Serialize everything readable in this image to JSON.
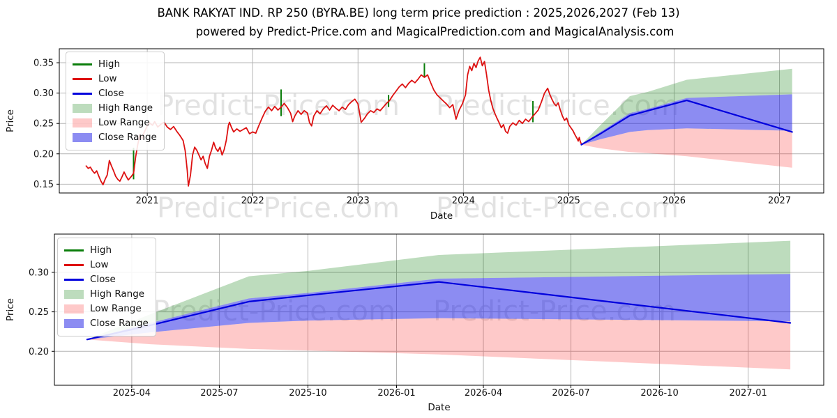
{
  "figure": {
    "title": "BANK RAKYAT IND. RP 250 (BYRA.BE) long term price prediction : 2025,2026,2027 (Feb 13)",
    "subtitle": "powered by Predict-Price.com and MagicalPrediction.com and MagicalAnalysis.com"
  },
  "watermark": {
    "text": "Predict-Price.com"
  },
  "colors": {
    "high": "#0a7d0a",
    "low": "#dd1111",
    "close": "#0000dd",
    "high_range_fill": "rgba(10,125,10,0.27)",
    "low_range_fill": "rgba(250,40,40,0.25)",
    "close_range_fill": "rgba(25,25,230,0.5)",
    "grid": "#b4b4b4",
    "axis": "#000000",
    "tick_label": "#111111",
    "watermark": "#cccccc"
  },
  "legend": {
    "items": [
      {
        "label": "High",
        "swatch": "line",
        "color_key": "high"
      },
      {
        "label": "Low",
        "swatch": "line",
        "color_key": "low"
      },
      {
        "label": "Close",
        "swatch": "line",
        "color_key": "close"
      },
      {
        "label": "High Range",
        "swatch": "band",
        "color_key": "high_range_fill"
      },
      {
        "label": "Low Range",
        "swatch": "band",
        "color_key": "low_range_fill"
      },
      {
        "label": "Close Range",
        "swatch": "band",
        "color_key": "close_range_fill"
      }
    ]
  },
  "prediction": {
    "x": [
      2025.12,
      2025.3,
      2025.58,
      2025.75,
      2026.12,
      2027.12
    ],
    "close": [
      0.215,
      0.233,
      0.263,
      0.271,
      0.288,
      0.236
    ],
    "close_top": [
      0.215,
      0.236,
      0.267,
      0.274,
      0.292,
      0.298
    ],
    "close_bot": [
      0.215,
      0.224,
      0.236,
      0.239,
      0.242,
      0.238
    ],
    "high_top": [
      0.215,
      0.247,
      0.295,
      0.302,
      0.322,
      0.34
    ],
    "low_bot": [
      0.215,
      0.209,
      0.203,
      0.201,
      0.196,
      0.177
    ]
  },
  "history": {
    "low_points": [
      [
        2020.42,
        0.18
      ],
      [
        2020.44,
        0.176
      ],
      [
        2020.46,
        0.178
      ],
      [
        2020.48,
        0.172
      ],
      [
        2020.5,
        0.168
      ],
      [
        2020.52,
        0.172
      ],
      [
        2020.54,
        0.163
      ],
      [
        2020.56,
        0.155
      ],
      [
        2020.58,
        0.149
      ],
      [
        2020.6,
        0.158
      ],
      [
        2020.62,
        0.165
      ],
      [
        2020.64,
        0.189
      ],
      [
        2020.66,
        0.18
      ],
      [
        2020.68,
        0.172
      ],
      [
        2020.7,
        0.163
      ],
      [
        2020.72,
        0.158
      ],
      [
        2020.74,
        0.155
      ],
      [
        2020.76,
        0.162
      ],
      [
        2020.78,
        0.17
      ],
      [
        2020.8,
        0.163
      ],
      [
        2020.82,
        0.157
      ],
      [
        2020.85,
        0.163
      ],
      [
        2020.87,
        0.168
      ],
      [
        2020.89,
        0.195
      ],
      [
        2020.91,
        0.215
      ],
      [
        2020.93,
        0.232
      ],
      [
        2020.95,
        0.224
      ],
      [
        2020.97,
        0.235
      ],
      [
        2021.0,
        0.246
      ],
      [
        2021.02,
        0.251
      ],
      [
        2021.05,
        0.247
      ],
      [
        2021.07,
        0.253
      ],
      [
        2021.1,
        0.244
      ],
      [
        2021.13,
        0.249
      ],
      [
        2021.16,
        0.252
      ],
      [
        2021.19,
        0.244
      ],
      [
        2021.22,
        0.24
      ],
      [
        2021.25,
        0.245
      ],
      [
        2021.28,
        0.237
      ],
      [
        2021.31,
        0.23
      ],
      [
        2021.34,
        0.222
      ],
      [
        2021.36,
        0.205
      ],
      [
        2021.38,
        0.172
      ],
      [
        2021.39,
        0.147
      ],
      [
        2021.41,
        0.165
      ],
      [
        2021.43,
        0.198
      ],
      [
        2021.45,
        0.211
      ],
      [
        2021.47,
        0.206
      ],
      [
        2021.49,
        0.198
      ],
      [
        2021.51,
        0.19
      ],
      [
        2021.53,
        0.196
      ],
      [
        2021.55,
        0.184
      ],
      [
        2021.57,
        0.176
      ],
      [
        2021.59,
        0.196
      ],
      [
        2021.61,
        0.206
      ],
      [
        2021.63,
        0.219
      ],
      [
        2021.65,
        0.209
      ],
      [
        2021.67,
        0.204
      ],
      [
        2021.69,
        0.211
      ],
      [
        2021.71,
        0.198
      ],
      [
        2021.73,
        0.207
      ],
      [
        2021.75,
        0.222
      ],
      [
        2021.77,
        0.247
      ],
      [
        2021.78,
        0.252
      ],
      [
        2021.8,
        0.243
      ],
      [
        2021.82,
        0.236
      ],
      [
        2021.85,
        0.241
      ],
      [
        2021.88,
        0.237
      ],
      [
        2021.91,
        0.24
      ],
      [
        2021.94,
        0.243
      ],
      [
        2021.97,
        0.233
      ],
      [
        2022.0,
        0.236
      ],
      [
        2022.03,
        0.234
      ],
      [
        2022.06,
        0.247
      ],
      [
        2022.09,
        0.259
      ],
      [
        2022.12,
        0.27
      ],
      [
        2022.15,
        0.277
      ],
      [
        2022.18,
        0.271
      ],
      [
        2022.21,
        0.278
      ],
      [
        2022.24,
        0.272
      ],
      [
        2022.27,
        0.277
      ],
      [
        2022.3,
        0.283
      ],
      [
        2022.33,
        0.276
      ],
      [
        2022.36,
        0.267
      ],
      [
        2022.38,
        0.253
      ],
      [
        2022.4,
        0.262
      ],
      [
        2022.43,
        0.271
      ],
      [
        2022.46,
        0.265
      ],
      [
        2022.49,
        0.271
      ],
      [
        2022.52,
        0.267
      ],
      [
        2022.54,
        0.251
      ],
      [
        2022.56,
        0.246
      ],
      [
        2022.58,
        0.262
      ],
      [
        2022.61,
        0.271
      ],
      [
        2022.64,
        0.266
      ],
      [
        2022.67,
        0.274
      ],
      [
        2022.7,
        0.279
      ],
      [
        2022.73,
        0.272
      ],
      [
        2022.76,
        0.28
      ],
      [
        2022.79,
        0.275
      ],
      [
        2022.82,
        0.271
      ],
      [
        2022.85,
        0.277
      ],
      [
        2022.88,
        0.273
      ],
      [
        2022.91,
        0.281
      ],
      [
        2022.94,
        0.286
      ],
      [
        2022.97,
        0.29
      ],
      [
        2023.0,
        0.282
      ],
      [
        2023.03,
        0.252
      ],
      [
        2023.06,
        0.258
      ],
      [
        2023.09,
        0.266
      ],
      [
        2023.12,
        0.271
      ],
      [
        2023.15,
        0.268
      ],
      [
        2023.18,
        0.274
      ],
      [
        2023.21,
        0.271
      ],
      [
        2023.24,
        0.277
      ],
      [
        2023.27,
        0.283
      ],
      [
        2023.3,
        0.288
      ],
      [
        2023.33,
        0.296
      ],
      [
        2023.36,
        0.303
      ],
      [
        2023.39,
        0.31
      ],
      [
        2023.42,
        0.315
      ],
      [
        2023.45,
        0.309
      ],
      [
        2023.48,
        0.316
      ],
      [
        2023.51,
        0.321
      ],
      [
        2023.54,
        0.317
      ],
      [
        2023.57,
        0.323
      ],
      [
        2023.6,
        0.33
      ],
      [
        2023.63,
        0.326
      ],
      [
        2023.66,
        0.33
      ],
      [
        2023.69,
        0.317
      ],
      [
        2023.72,
        0.305
      ],
      [
        2023.75,
        0.297
      ],
      [
        2023.78,
        0.292
      ],
      [
        2023.81,
        0.287
      ],
      [
        2023.84,
        0.282
      ],
      [
        2023.87,
        0.276
      ],
      [
        2023.9,
        0.281
      ],
      [
        2023.93,
        0.257
      ],
      [
        2023.96,
        0.272
      ],
      [
        2023.99,
        0.282
      ],
      [
        2024.02,
        0.297
      ],
      [
        2024.04,
        0.33
      ],
      [
        2024.06,
        0.344
      ],
      [
        2024.08,
        0.337
      ],
      [
        2024.1,
        0.349
      ],
      [
        2024.12,
        0.342
      ],
      [
        2024.14,
        0.353
      ],
      [
        2024.16,
        0.359
      ],
      [
        2024.18,
        0.345
      ],
      [
        2024.2,
        0.352
      ],
      [
        2024.22,
        0.33
      ],
      [
        2024.24,
        0.305
      ],
      [
        2024.26,
        0.288
      ],
      [
        2024.28,
        0.275
      ],
      [
        2024.3,
        0.266
      ],
      [
        2024.32,
        0.258
      ],
      [
        2024.34,
        0.251
      ],
      [
        2024.36,
        0.243
      ],
      [
        2024.38,
        0.248
      ],
      [
        2024.4,
        0.237
      ],
      [
        2024.42,
        0.234
      ],
      [
        2024.44,
        0.245
      ],
      [
        2024.47,
        0.251
      ],
      [
        2024.5,
        0.247
      ],
      [
        2024.53,
        0.255
      ],
      [
        2024.56,
        0.25
      ],
      [
        2024.59,
        0.257
      ],
      [
        2024.62,
        0.253
      ],
      [
        2024.65,
        0.26
      ],
      [
        2024.68,
        0.266
      ],
      [
        2024.71,
        0.272
      ],
      [
        2024.74,
        0.285
      ],
      [
        2024.77,
        0.3
      ],
      [
        2024.8,
        0.308
      ],
      [
        2024.82,
        0.298
      ],
      [
        2024.84,
        0.29
      ],
      [
        2024.86,
        0.283
      ],
      [
        2024.88,
        0.279
      ],
      [
        2024.9,
        0.284
      ],
      [
        2024.92,
        0.272
      ],
      [
        2024.94,
        0.262
      ],
      [
        2024.96,
        0.255
      ],
      [
        2024.98,
        0.259
      ],
      [
        2025.0,
        0.248
      ],
      [
        2025.02,
        0.243
      ],
      [
        2025.04,
        0.238
      ],
      [
        2025.06,
        0.231
      ],
      [
        2025.08,
        0.225
      ],
      [
        2025.09,
        0.221
      ],
      [
        2025.1,
        0.227
      ],
      [
        2025.11,
        0.22
      ],
      [
        2025.12,
        0.216
      ]
    ],
    "high_spikes": [
      [
        2020.87,
        0.158,
        0.21
      ],
      [
        2022.27,
        0.262,
        0.306
      ],
      [
        2023.29,
        0.277,
        0.297
      ],
      [
        2023.63,
        0.326,
        0.349
      ],
      [
        2024.66,
        0.252,
        0.287
      ]
    ]
  },
  "chart_data": [
    {
      "id": "history-with-prediction",
      "type": "line",
      "title": "",
      "xlabel": "Date",
      "ylabel": "Price",
      "grid": true,
      "legend_position": "upper left",
      "xlim": [
        2020.165,
        2027.42
      ],
      "ylim": [
        0.1355,
        0.373
      ],
      "xticks": [
        {
          "v": 2021,
          "label": "2021"
        },
        {
          "v": 2022,
          "label": "2022"
        },
        {
          "v": 2023,
          "label": "2023"
        },
        {
          "v": 2024,
          "label": "2024"
        },
        {
          "v": 2025,
          "label": "2025"
        },
        {
          "v": 2026,
          "label": "2026"
        },
        {
          "v": 2027,
          "label": "2027"
        }
      ],
      "yticks": [
        {
          "v": 0.15,
          "label": "0.15"
        },
        {
          "v": 0.2,
          "label": "0.20"
        },
        {
          "v": 0.25,
          "label": "0.25"
        },
        {
          "v": 0.3,
          "label": "0.30"
        },
        {
          "v": 0.35,
          "label": "0.35"
        }
      ],
      "series": [
        {
          "name": "High Range",
          "kind": "band",
          "x_ref": "prediction.x",
          "top_ref": "prediction.high_top",
          "bottom_ref": "prediction.close_top",
          "color_key": "high_range_fill"
        },
        {
          "name": "Low Range",
          "kind": "band",
          "x_ref": "prediction.x",
          "top_ref": "prediction.close_bot",
          "bottom_ref": "prediction.low_bot",
          "color_key": "low_range_fill"
        },
        {
          "name": "Close Range",
          "kind": "band",
          "x_ref": "prediction.x",
          "top_ref": "prediction.close_top",
          "bottom_ref": "prediction.close_bot",
          "color_key": "close_range_fill"
        },
        {
          "name": "High",
          "kind": "spikes",
          "points_ref": "history.high_spikes",
          "color_key": "high",
          "width": 2
        },
        {
          "name": "Low",
          "kind": "line",
          "points_ref": "history.low_points",
          "color_key": "low",
          "width": 1.8
        },
        {
          "name": "Close",
          "kind": "line",
          "x_ref": "prediction.x",
          "y_ref": "prediction.close",
          "color_key": "close",
          "width": 2.2
        }
      ]
    },
    {
      "id": "prediction-detail",
      "type": "line",
      "title": "",
      "xlabel": "Date",
      "ylabel": "Price",
      "grid": true,
      "legend_position": "upper left",
      "xlim": [
        2025.027,
        2027.215
      ],
      "ylim": [
        0.157,
        0.3485
      ],
      "xticks": [
        {
          "v": 2025.247,
          "label": "2025-04"
        },
        {
          "v": 2025.496,
          "label": "2025-07"
        },
        {
          "v": 2025.748,
          "label": "2025-10"
        },
        {
          "v": 2026.0,
          "label": "2026-01"
        },
        {
          "v": 2026.247,
          "label": "2026-04"
        },
        {
          "v": 2026.496,
          "label": "2026-07"
        },
        {
          "v": 2026.748,
          "label": "2026-10"
        },
        {
          "v": 2027.0,
          "label": "2027-01"
        }
      ],
      "yticks": [
        {
          "v": 0.2,
          "label": "0.20"
        },
        {
          "v": 0.25,
          "label": "0.25"
        },
        {
          "v": 0.3,
          "label": "0.30"
        }
      ],
      "series": [
        {
          "name": "High Range",
          "kind": "band",
          "x_ref": "prediction.x",
          "top_ref": "prediction.high_top",
          "bottom_ref": "prediction.close_top",
          "color_key": "high_range_fill"
        },
        {
          "name": "Low Range",
          "kind": "band",
          "x_ref": "prediction.x",
          "top_ref": "prediction.close_bot",
          "bottom_ref": "prediction.low_bot",
          "color_key": "low_range_fill"
        },
        {
          "name": "Close Range",
          "kind": "band",
          "x_ref": "prediction.x",
          "top_ref": "prediction.close_top",
          "bottom_ref": "prediction.close_bot",
          "color_key": "close_range_fill"
        },
        {
          "name": "Close",
          "kind": "line",
          "x_ref": "prediction.x",
          "y_ref": "prediction.close",
          "color_key": "close",
          "width": 2.2
        }
      ]
    }
  ]
}
